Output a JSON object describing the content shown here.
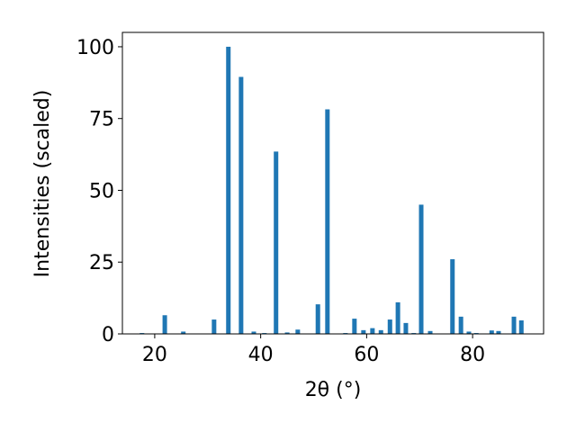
{
  "chart_data": {
    "type": "bar",
    "xlabel": "2θ (°)",
    "ylabel": "Intensities (scaled)",
    "color": "#1f77b4",
    "x": [
      17.6,
      21.9,
      25.4,
      31.2,
      33.9,
      36.3,
      38.7,
      40.7,
      42.9,
      45.0,
      47.0,
      50.8,
      52.6,
      56.0,
      57.7,
      59.4,
      61.1,
      62.7,
      64.4,
      65.9,
      67.4,
      68.9,
      70.3,
      72.0,
      76.2,
      77.8,
      79.3,
      80.7,
      83.6,
      84.9,
      87.8,
      89.2
    ],
    "values": [
      0.3,
      6.5,
      0.8,
      5,
      100,
      89.5,
      0.8,
      0.3,
      63.5,
      0.5,
      1.5,
      10.3,
      78.2,
      0.3,
      5.3,
      1.3,
      2,
      1.3,
      5,
      11,
      3.8,
      0.3,
      45,
      1,
      26,
      6,
      0.8,
      0.3,
      1.2,
      1,
      6,
      4.7
    ],
    "xlim": [
      13.9,
      93.4
    ],
    "ylim": [
      0,
      105
    ],
    "xticks": [
      20,
      40,
      60,
      80
    ],
    "yticks": [
      0,
      25,
      50,
      75,
      100
    ]
  }
}
